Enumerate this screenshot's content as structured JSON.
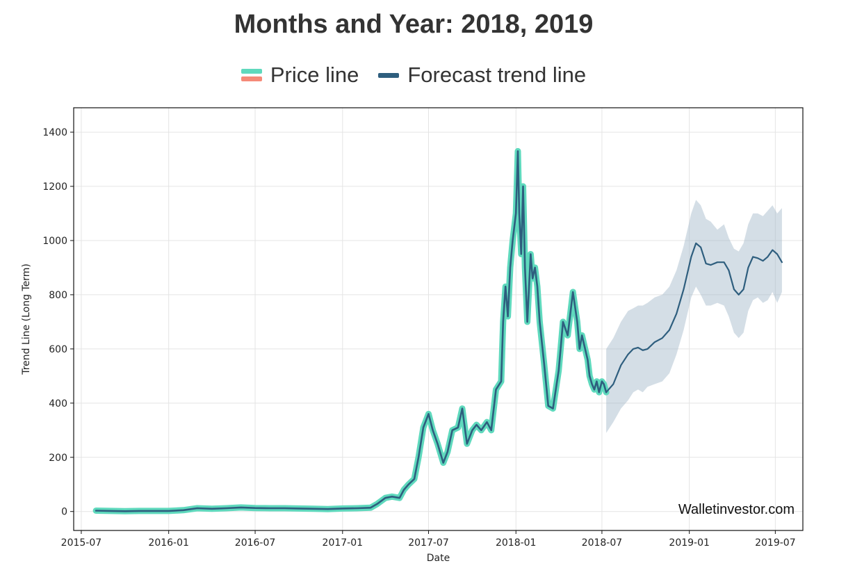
{
  "chart_data": {
    "type": "line",
    "title": "Months and Year: 2018, 2019",
    "xlabel": "Date",
    "ylabel": "Trend Line (Long Term)",
    "ylim": [
      -70,
      1490
    ],
    "xlim": [
      "2015-06-15",
      "2019-08-28"
    ],
    "yticks": [
      0,
      200,
      400,
      600,
      800,
      1000,
      1200,
      1400
    ],
    "xticks": [
      "2015-07",
      "2016-01",
      "2016-07",
      "2017-01",
      "2017-07",
      "2018-01",
      "2018-07",
      "2019-01",
      "2019-07"
    ],
    "grid": true,
    "legend": {
      "placement": "top-center"
    },
    "watermark": "Walletinvestor.com",
    "colors": {
      "price_line": "#5fd9bd",
      "price_line_alt": "#f58a78",
      "forecast_line": "#2e5e7e",
      "confidence_band": "#9fb5c8",
      "grid": "#e4e4e4"
    },
    "series": [
      {
        "name": "Price line",
        "x": [
          "2015-08-01",
          "2015-09-01",
          "2015-10-01",
          "2015-11-01",
          "2015-12-01",
          "2016-01-01",
          "2016-02-01",
          "2016-03-01",
          "2016-04-01",
          "2016-05-01",
          "2016-06-01",
          "2016-07-01",
          "2016-08-01",
          "2016-09-01",
          "2016-10-01",
          "2016-11-01",
          "2016-12-01",
          "2017-01-01",
          "2017-02-01",
          "2017-03-01",
          "2017-03-15",
          "2017-04-01",
          "2017-04-15",
          "2017-05-01",
          "2017-05-10",
          "2017-05-20",
          "2017-06-01",
          "2017-06-10",
          "2017-06-20",
          "2017-07-01",
          "2017-07-10",
          "2017-07-20",
          "2017-08-01",
          "2017-08-10",
          "2017-08-20",
          "2017-09-01",
          "2017-09-10",
          "2017-09-20",
          "2017-10-01",
          "2017-10-10",
          "2017-10-20",
          "2017-11-01",
          "2017-11-10",
          "2017-11-20",
          "2017-12-01",
          "2017-12-05",
          "2017-12-10",
          "2017-12-15",
          "2017-12-20",
          "2017-12-25",
          "2018-01-01",
          "2018-01-05",
          "2018-01-08",
          "2018-01-12",
          "2018-01-16",
          "2018-01-20",
          "2018-01-25",
          "2018-02-01",
          "2018-02-05",
          "2018-02-10",
          "2018-02-15",
          "2018-02-20",
          "2018-03-01",
          "2018-03-10",
          "2018-03-20",
          "2018-04-01",
          "2018-04-05",
          "2018-04-10",
          "2018-04-20",
          "2018-05-01",
          "2018-05-05",
          "2018-05-10",
          "2018-05-15",
          "2018-05-20",
          "2018-06-01",
          "2018-06-05",
          "2018-06-10",
          "2018-06-15",
          "2018-06-20",
          "2018-06-25",
          "2018-07-01",
          "2018-07-05",
          "2018-07-10"
        ],
        "values": [
          3,
          2,
          1,
          2,
          2,
          2,
          5,
          12,
          10,
          12,
          15,
          13,
          12,
          12,
          11,
          10,
          9,
          11,
          12,
          14,
          28,
          50,
          55,
          50,
          80,
          100,
          120,
          200,
          310,
          360,
          300,
          250,
          180,
          220,
          300,
          310,
          380,
          250,
          300,
          320,
          300,
          330,
          300,
          450,
          480,
          700,
          830,
          720,
          900,
          1000,
          1100,
          1330,
          1100,
          950,
          1200,
          900,
          700,
          950,
          860,
          900,
          830,
          700,
          550,
          390,
          380,
          520,
          600,
          700,
          650,
          810,
          760,
          700,
          600,
          650,
          560,
          500,
          470,
          450,
          480,
          440,
          480,
          470,
          440
        ]
      },
      {
        "name": "Forecast trend line",
        "x": [
          "2018-07-10",
          "2018-07-25",
          "2018-08-10",
          "2018-08-25",
          "2018-09-05",
          "2018-09-15",
          "2018-09-25",
          "2018-10-05",
          "2018-10-20",
          "2018-11-05",
          "2018-11-20",
          "2018-12-05",
          "2018-12-20",
          "2019-01-05",
          "2019-01-15",
          "2019-01-25",
          "2019-02-05",
          "2019-02-15",
          "2019-03-01",
          "2019-03-15",
          "2019-03-25",
          "2019-04-05",
          "2019-04-15",
          "2019-04-25",
          "2019-05-05",
          "2019-05-15",
          "2019-05-25",
          "2019-06-05",
          "2019-06-15",
          "2019-06-25",
          "2019-07-05",
          "2019-07-15"
        ],
        "values": [
          440,
          470,
          540,
          580,
          600,
          605,
          595,
          600,
          625,
          640,
          670,
          730,
          820,
          940,
          990,
          975,
          915,
          910,
          920,
          920,
          890,
          820,
          800,
          820,
          900,
          940,
          935,
          925,
          940,
          965,
          950,
          920
        ]
      }
    ],
    "confidence_band": {
      "x": [
        "2018-07-10",
        "2018-07-25",
        "2018-08-10",
        "2018-08-25",
        "2018-09-05",
        "2018-09-15",
        "2018-09-25",
        "2018-10-05",
        "2018-10-20",
        "2018-11-05",
        "2018-11-20",
        "2018-12-05",
        "2018-12-20",
        "2019-01-05",
        "2019-01-15",
        "2019-01-25",
        "2019-02-05",
        "2019-02-15",
        "2019-03-01",
        "2019-03-15",
        "2019-03-25",
        "2019-04-05",
        "2019-04-15",
        "2019-04-25",
        "2019-05-05",
        "2019-05-15",
        "2019-05-25",
        "2019-06-05",
        "2019-06-15",
        "2019-06-25",
        "2019-07-05",
        "2019-07-15"
      ],
      "lower": [
        290,
        330,
        380,
        410,
        440,
        450,
        440,
        460,
        470,
        480,
        510,
        580,
        670,
        790,
        830,
        800,
        760,
        760,
        770,
        760,
        720,
        660,
        640,
        660,
        740,
        780,
        790,
        770,
        780,
        810,
        770,
        810
      ],
      "upper": [
        600,
        640,
        700,
        740,
        750,
        760,
        760,
        770,
        790,
        800,
        830,
        890,
        980,
        1100,
        1150,
        1130,
        1080,
        1070,
        1040,
        1060,
        1010,
        970,
        960,
        990,
        1060,
        1100,
        1100,
        1090,
        1110,
        1130,
        1100,
        1120
      ]
    }
  }
}
